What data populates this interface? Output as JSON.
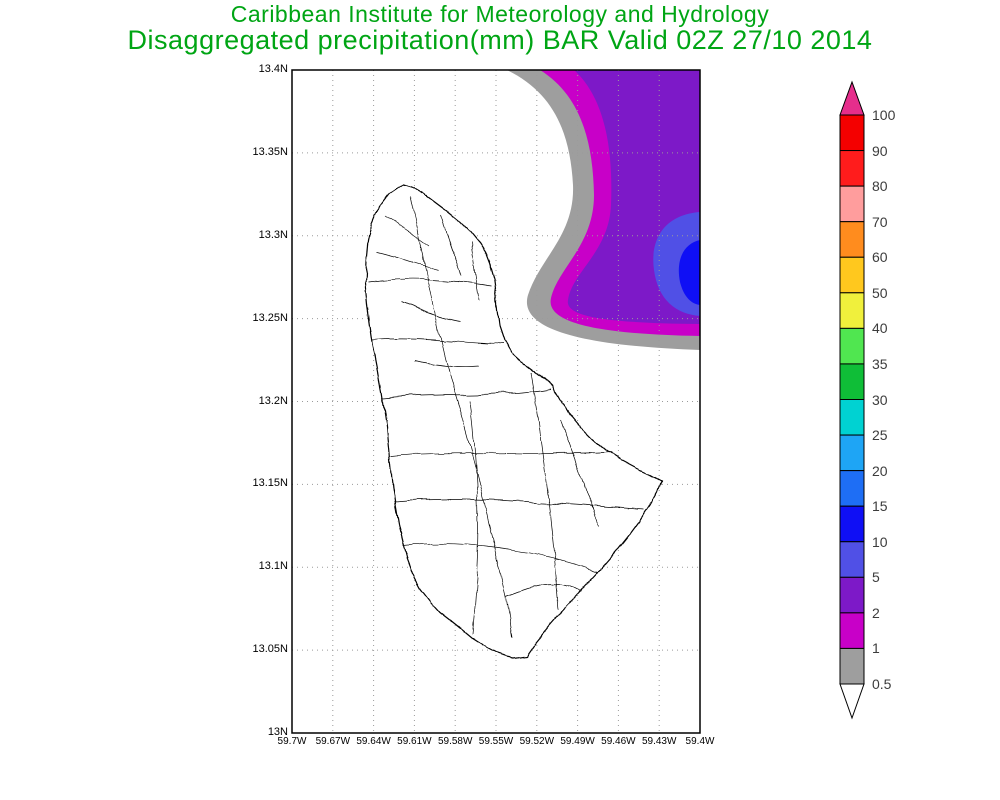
{
  "title": {
    "line1": "Caribbean Institute for Meteorology and Hydrology",
    "line2": "Disaggregated precipitation(mm) BAR Valid 02Z 27/10 2014",
    "color": "#00a514"
  },
  "map": {
    "lat_labels": [
      "13.4N",
      "13.35N",
      "13.3N",
      "13.25N",
      "13.2N",
      "13.15N",
      "13.1N",
      "13.05N",
      "13N"
    ],
    "lon_labels": [
      "59.7W",
      "59.67W",
      "59.64W",
      "59.61W",
      "59.58W",
      "59.55W",
      "59.52W",
      "59.49W",
      "59.46W",
      "59.43W",
      "59.4W"
    ],
    "shaded_levels_visible": [
      "0.5",
      "1",
      "2",
      "5",
      "10"
    ]
  },
  "legend": {
    "units": "mm",
    "boundary_labels_top_to_bottom": [
      "100",
      "90",
      "80",
      "70",
      "60",
      "50",
      "40",
      "35",
      "30",
      "25",
      "20",
      "15",
      "10",
      "5",
      "2",
      "1",
      "0.5"
    ],
    "band_colors_top_to_bottom": [
      "#f40000",
      "#ff1c1c",
      "#ff9d9d",
      "#ff8c1e",
      "#ffc81e",
      "#f0f03c",
      "#50e650",
      "#0fbe37",
      "#00d2d2",
      "#1ea5f5",
      "#1e6ef5",
      "#0f0ff5",
      "#5050e6",
      "#7d19c8",
      "#c800c8",
      "#9e9e9e"
    ],
    "above_max_color": "#e62e8c",
    "below_min_color": "#ffffff"
  }
}
